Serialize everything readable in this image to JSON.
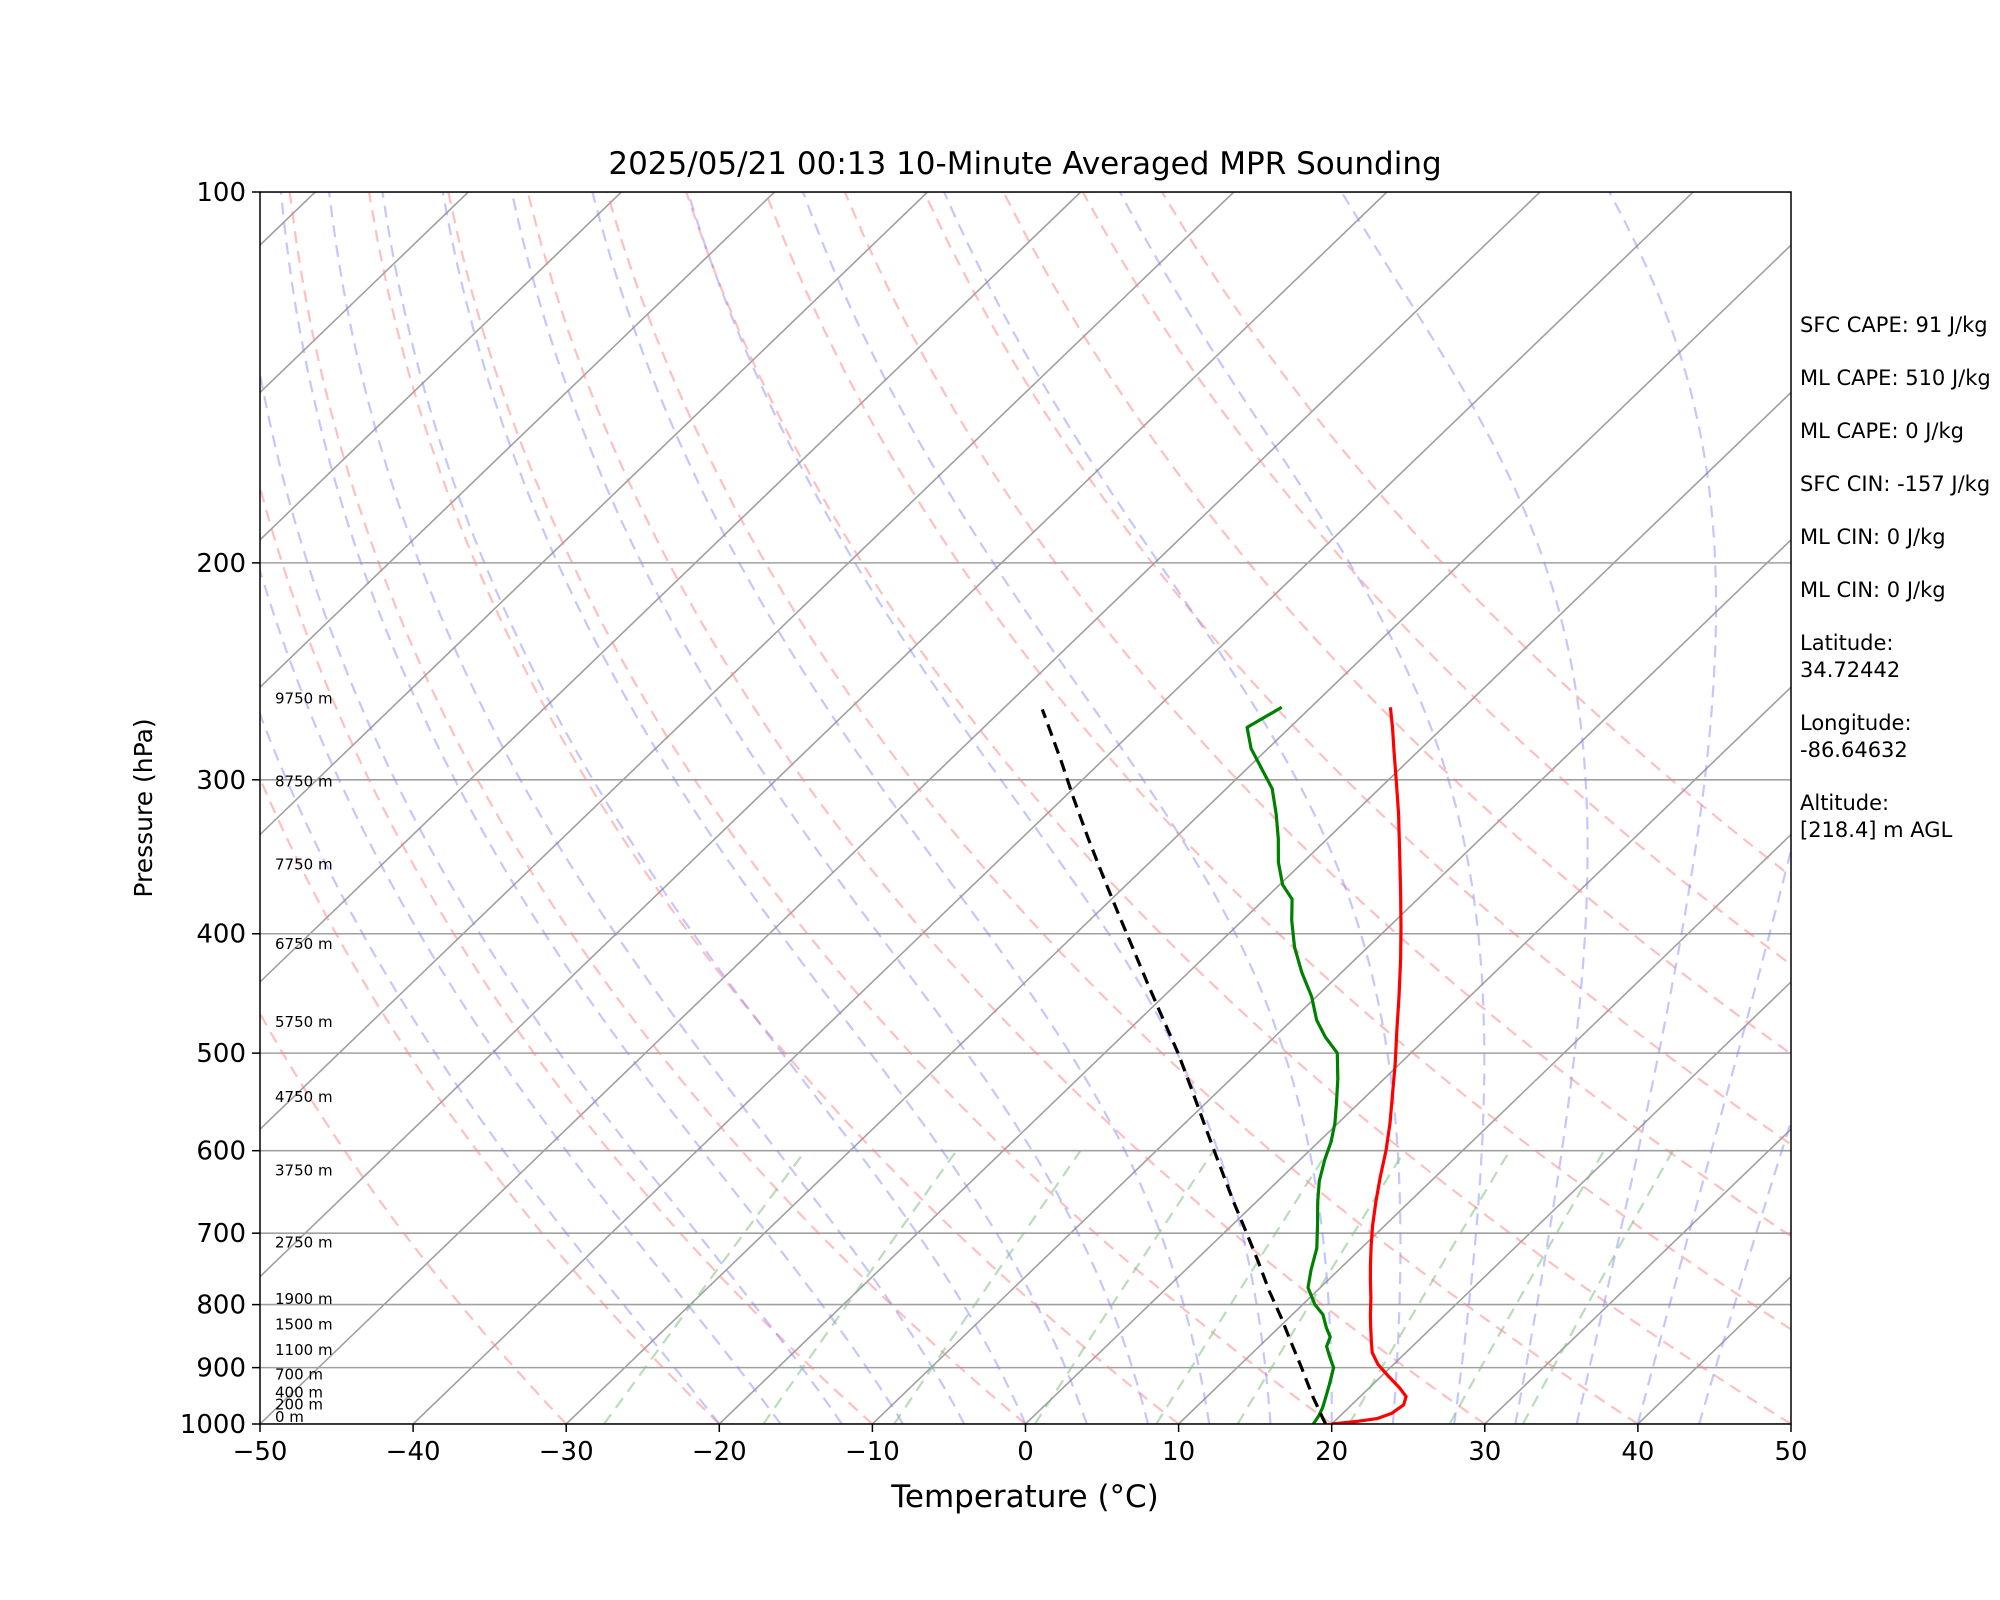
{
  "chart_data": {
    "type": "line",
    "title": "2025/05/21 00:13 10-Minute Averaged MPR Sounding",
    "xlabel": "Temperature (°C)",
    "ylabel": "Pressure (hPa)",
    "xlim": [
      -50,
      50
    ],
    "ylim": [
      1000,
      100
    ],
    "yscale": "log",
    "x_ticks": [
      "−50",
      "−40",
      "−30",
      "−20",
      "−10",
      "0",
      "10",
      "20",
      "30",
      "40",
      "50"
    ],
    "y_ticks": [
      "100",
      "200",
      "300",
      "400",
      "500",
      "600",
      "700",
      "800",
      "900",
      "1000"
    ],
    "grid": "horizontal isobars, skewed isotherms",
    "background_lines": [
      "dry adiabats",
      "moist adiabats",
      "mixing ratio lines"
    ],
    "height_labels": [
      {
        "p": 1000,
        "label": "0 m"
      },
      {
        "p": 977,
        "label": "200 m"
      },
      {
        "p": 955,
        "label": "400 m"
      },
      {
        "p": 924,
        "label": "700 m"
      },
      {
        "p": 882,
        "label": "1100 m"
      },
      {
        "p": 841,
        "label": "1500 m"
      },
      {
        "p": 802,
        "label": "1900 m"
      },
      {
        "p": 722,
        "label": "2750 m"
      },
      {
        "p": 631,
        "label": "3750 m"
      },
      {
        "p": 550,
        "label": "4750 m"
      },
      {
        "p": 478,
        "label": "5750 m"
      },
      {
        "p": 413,
        "label": "6750 m"
      },
      {
        "p": 356,
        "label": "7750 m"
      },
      {
        "p": 305,
        "label": "8750 m"
      },
      {
        "p": 261,
        "label": "9750 m"
      }
    ],
    "series": [
      {
        "role": "temperature",
        "color": "#ff0000",
        "points": [
          [
            1000,
            20.0
          ],
          [
            995,
            21.5
          ],
          [
            990,
            22.6
          ],
          [
            980,
            23.2
          ],
          [
            965,
            23.4
          ],
          [
            950,
            23.0
          ],
          [
            935,
            22.0
          ],
          [
            915,
            20.5
          ],
          [
            895,
            19.0
          ],
          [
            875,
            17.8
          ],
          [
            855,
            16.9
          ],
          [
            835,
            16.0
          ],
          [
            815,
            15.1
          ],
          [
            790,
            14.0
          ],
          [
            765,
            12.8
          ],
          [
            740,
            11.6
          ],
          [
            715,
            10.4
          ],
          [
            690,
            9.2
          ],
          [
            660,
            7.8
          ],
          [
            630,
            6.4
          ],
          [
            600,
            5.0
          ],
          [
            570,
            3.4
          ],
          [
            540,
            1.6
          ],
          [
            510,
            -0.3
          ],
          [
            480,
            -2.4
          ],
          [
            450,
            -4.6
          ],
          [
            420,
            -7.0
          ],
          [
            395,
            -9.2
          ],
          [
            370,
            -11.6
          ],
          [
            345,
            -14.2
          ],
          [
            320,
            -17.0
          ],
          [
            300,
            -19.5
          ],
          [
            285,
            -21.5
          ],
          [
            272,
            -23.3
          ],
          [
            262,
            -24.8
          ]
        ]
      },
      {
        "role": "dewpoint",
        "color": "#008000",
        "points": [
          [
            1000,
            18.8
          ],
          [
            985,
            18.6
          ],
          [
            970,
            18.3
          ],
          [
            955,
            17.9
          ],
          [
            930,
            17.2
          ],
          [
            900,
            16.3
          ],
          [
            880,
            15.2
          ],
          [
            865,
            14.4
          ],
          [
            850,
            14.0
          ],
          [
            835,
            13.1
          ],
          [
            815,
            12.0
          ],
          [
            800,
            10.8
          ],
          [
            775,
            9.2
          ],
          [
            750,
            8.2
          ],
          [
            720,
            7.1
          ],
          [
            690,
            5.6
          ],
          [
            660,
            4.0
          ],
          [
            635,
            2.7
          ],
          [
            610,
            1.6
          ],
          [
            590,
            0.8
          ],
          [
            570,
            -0.2
          ],
          [
            550,
            -1.4
          ],
          [
            525,
            -3.0
          ],
          [
            500,
            -4.8
          ],
          [
            485,
            -6.7
          ],
          [
            470,
            -8.4
          ],
          [
            450,
            -10.3
          ],
          [
            430,
            -12.6
          ],
          [
            410,
            -14.8
          ],
          [
            390,
            -16.8
          ],
          [
            375,
            -18.2
          ],
          [
            365,
            -19.8
          ],
          [
            350,
            -21.6
          ],
          [
            335,
            -23.2
          ],
          [
            320,
            -25.0
          ],
          [
            305,
            -27.0
          ],
          [
            293,
            -29.2
          ],
          [
            283,
            -31.1
          ],
          [
            272,
            -32.8
          ],
          [
            262,
            -31.9
          ]
        ]
      },
      {
        "role": "parcel profile",
        "color": "#000000",
        "dashed": true,
        "points": [
          [
            1000,
            19.6
          ],
          [
            985,
            18.8
          ],
          [
            970,
            18.0
          ],
          [
            950,
            16.9
          ],
          [
            900,
            14.2
          ],
          [
            860,
            11.9
          ],
          [
            820,
            9.5
          ],
          [
            780,
            6.9
          ],
          [
            740,
            4.3
          ],
          [
            700,
            1.5
          ],
          [
            660,
            -1.5
          ],
          [
            620,
            -4.6
          ],
          [
            580,
            -7.9
          ],
          [
            540,
            -11.4
          ],
          [
            500,
            -15.2
          ],
          [
            470,
            -18.4
          ],
          [
            440,
            -21.8
          ],
          [
            410,
            -25.4
          ],
          [
            385,
            -28.6
          ],
          [
            360,
            -32.0
          ],
          [
            335,
            -35.6
          ],
          [
            310,
            -39.4
          ],
          [
            290,
            -42.6
          ],
          [
            275,
            -45.2
          ],
          [
            263,
            -47.4
          ]
        ]
      }
    ],
    "annotations": [
      "SFC CAPE: 91 J/kg",
      "ML CAPE: 510 J/kg",
      "ML CAPE: 0 J/kg",
      "SFC CIN: -157 J/kg",
      "ML CIN: 0 J/kg",
      "ML CIN: 0 J/kg",
      "Latitude:\n34.72442",
      "Longitude:\n-86.64632",
      "Altitude:\n[218.4] m AGL"
    ],
    "colors": {
      "temperature": "#ff0000",
      "dewpoint": "#008000",
      "parcel": "#000000",
      "dry_adiabats": "#ff8080",
      "moist_adiabats": "#8080ff",
      "mixing_ratio": "#80c080",
      "isobars_isotherms": "#a0a0a0"
    }
  }
}
